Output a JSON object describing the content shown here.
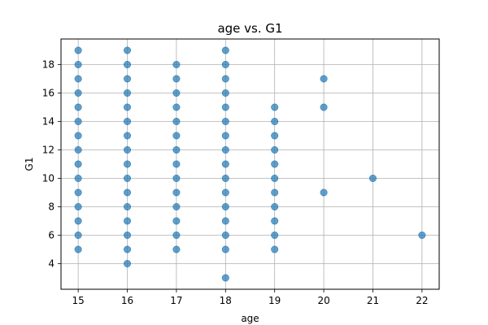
{
  "chart_data": {
    "type": "scatter",
    "title": "age vs. G1",
    "xlabel": "age",
    "ylabel": "G1",
    "xlim": [
      14.65,
      22.35
    ],
    "ylim": [
      2.2,
      19.8
    ],
    "xticks": [
      15,
      16,
      17,
      18,
      19,
      20,
      21,
      22
    ],
    "yticks": [
      4,
      6,
      8,
      10,
      12,
      14,
      16,
      18
    ],
    "grid": true,
    "point_color": "#1f77b4",
    "point_alpha": 0.7,
    "points": [
      {
        "x": 15,
        "y": 19
      },
      {
        "x": 15,
        "y": 18
      },
      {
        "x": 15,
        "y": 17
      },
      {
        "x": 15,
        "y": 16
      },
      {
        "x": 15,
        "y": 15
      },
      {
        "x": 15,
        "y": 14
      },
      {
        "x": 15,
        "y": 13
      },
      {
        "x": 15,
        "y": 12
      },
      {
        "x": 15,
        "y": 11
      },
      {
        "x": 15,
        "y": 10
      },
      {
        "x": 15,
        "y": 9
      },
      {
        "x": 15,
        "y": 8
      },
      {
        "x": 15,
        "y": 7
      },
      {
        "x": 15,
        "y": 6
      },
      {
        "x": 15,
        "y": 5
      },
      {
        "x": 16,
        "y": 19
      },
      {
        "x": 16,
        "y": 18
      },
      {
        "x": 16,
        "y": 17
      },
      {
        "x": 16,
        "y": 16
      },
      {
        "x": 16,
        "y": 15
      },
      {
        "x": 16,
        "y": 14
      },
      {
        "x": 16,
        "y": 13
      },
      {
        "x": 16,
        "y": 12
      },
      {
        "x": 16,
        "y": 11
      },
      {
        "x": 16,
        "y": 10
      },
      {
        "x": 16,
        "y": 9
      },
      {
        "x": 16,
        "y": 8
      },
      {
        "x": 16,
        "y": 7
      },
      {
        "x": 16,
        "y": 6
      },
      {
        "x": 16,
        "y": 5
      },
      {
        "x": 16,
        "y": 4
      },
      {
        "x": 17,
        "y": 18
      },
      {
        "x": 17,
        "y": 17
      },
      {
        "x": 17,
        "y": 16
      },
      {
        "x": 17,
        "y": 15
      },
      {
        "x": 17,
        "y": 14
      },
      {
        "x": 17,
        "y": 13
      },
      {
        "x": 17,
        "y": 12
      },
      {
        "x": 17,
        "y": 11
      },
      {
        "x": 17,
        "y": 10
      },
      {
        "x": 17,
        "y": 9
      },
      {
        "x": 17,
        "y": 8
      },
      {
        "x": 17,
        "y": 7
      },
      {
        "x": 17,
        "y": 6
      },
      {
        "x": 17,
        "y": 5
      },
      {
        "x": 18,
        "y": 19
      },
      {
        "x": 18,
        "y": 18
      },
      {
        "x": 18,
        "y": 17
      },
      {
        "x": 18,
        "y": 16
      },
      {
        "x": 18,
        "y": 15
      },
      {
        "x": 18,
        "y": 14
      },
      {
        "x": 18,
        "y": 13
      },
      {
        "x": 18,
        "y": 12
      },
      {
        "x": 18,
        "y": 11
      },
      {
        "x": 18,
        "y": 10
      },
      {
        "x": 18,
        "y": 9
      },
      {
        "x": 18,
        "y": 8
      },
      {
        "x": 18,
        "y": 7
      },
      {
        "x": 18,
        "y": 6
      },
      {
        "x": 18,
        "y": 5
      },
      {
        "x": 18,
        "y": 3
      },
      {
        "x": 19,
        "y": 15
      },
      {
        "x": 19,
        "y": 14
      },
      {
        "x": 19,
        "y": 13
      },
      {
        "x": 19,
        "y": 12
      },
      {
        "x": 19,
        "y": 11
      },
      {
        "x": 19,
        "y": 10
      },
      {
        "x": 19,
        "y": 9
      },
      {
        "x": 19,
        "y": 8
      },
      {
        "x": 19,
        "y": 7
      },
      {
        "x": 19,
        "y": 6
      },
      {
        "x": 19,
        "y": 5
      },
      {
        "x": 20,
        "y": 17
      },
      {
        "x": 20,
        "y": 15
      },
      {
        "x": 20,
        "y": 9
      },
      {
        "x": 21,
        "y": 10
      },
      {
        "x": 22,
        "y": 6
      }
    ]
  }
}
